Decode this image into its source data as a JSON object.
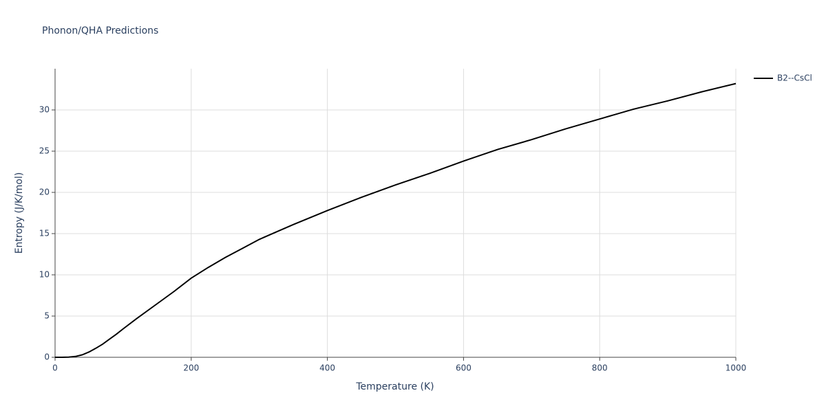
{
  "chart_data": {
    "type": "line",
    "title": "Phonon/QHA Predictions",
    "x_label": "Temperature (K)",
    "y_label": "Entropy (J/K/mol)",
    "x": [
      0,
      10,
      20,
      30,
      40,
      50,
      60,
      70,
      80,
      90,
      100,
      120,
      150,
      175,
      200,
      225,
      250,
      275,
      300,
      325,
      350,
      400,
      450,
      500,
      550,
      600,
      650,
      700,
      750,
      800,
      850,
      900,
      950,
      1000
    ],
    "series": [
      {
        "name": "B2--CsCl",
        "color": "#000000",
        "values": [
          0,
          0,
          0.02,
          0.1,
          0.3,
          0.65,
          1.1,
          1.6,
          2.2,
          2.8,
          3.45,
          4.7,
          6.5,
          8.0,
          9.6,
          10.9,
          12.1,
          13.2,
          14.3,
          15.2,
          16.1,
          17.8,
          19.4,
          20.9,
          22.3,
          23.8,
          25.2,
          26.4,
          27.7,
          28.9,
          30.1,
          31.1,
          32.2,
          33.2
        ]
      }
    ],
    "xlim": [
      0,
      1000
    ],
    "xticks": [
      0,
      200,
      400,
      600,
      800,
      1000
    ],
    "ylim": [
      0,
      35
    ],
    "yticks": [
      0,
      5,
      10,
      15,
      20,
      25,
      30
    ],
    "grid": true,
    "legend": "top-right"
  }
}
